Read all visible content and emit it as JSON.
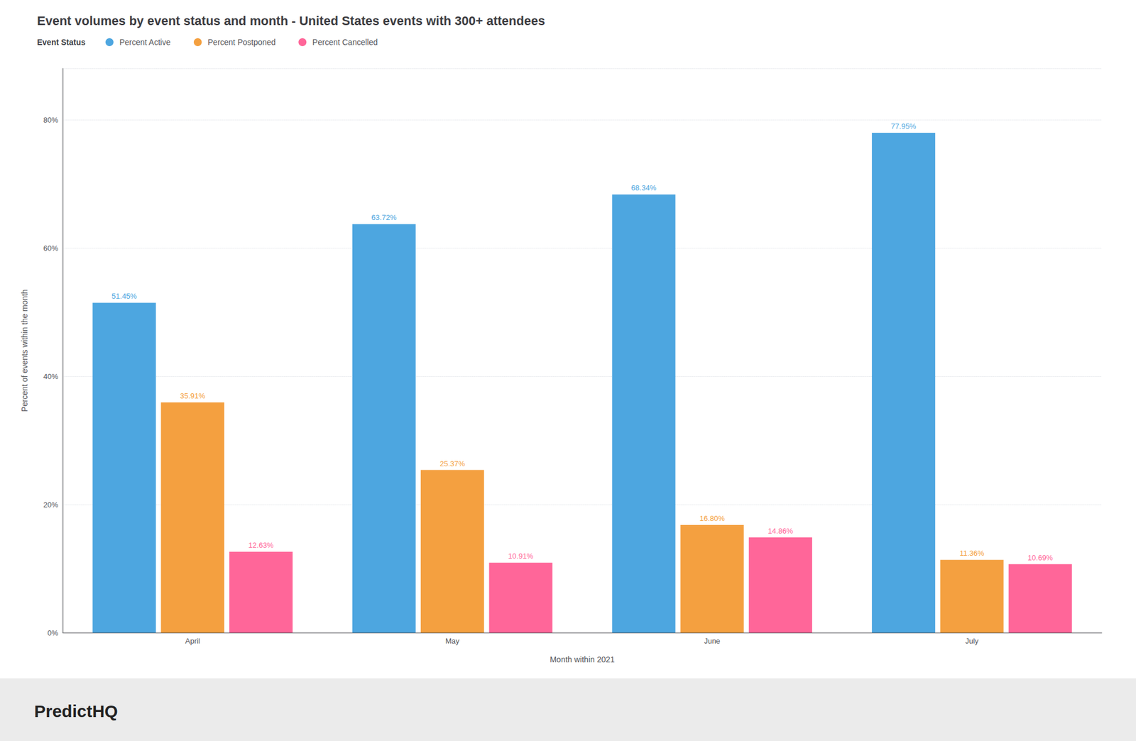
{
  "chart_data": {
    "type": "bar",
    "title": "Event volumes by event status and month - United States events with 300+ attendees",
    "x_label": "Month within 2021",
    "y_label": "Percent of events within the month",
    "legend_title": "Event Status",
    "annotations": [
      "PredictHQ"
    ],
    "categories": [
      "April",
      "May",
      "June",
      "July"
    ],
    "series": [
      {
        "name": "Percent Active",
        "color": "#4DA6E0",
        "values": [
          51.45,
          63.72,
          68.34,
          77.95
        ],
        "value_labels": [
          "51.45%",
          "63.72%",
          "68.34%",
          "77.95%"
        ]
      },
      {
        "name": "Percent Postponed",
        "color": "#F4A040",
        "values": [
          35.91,
          25.37,
          16.8,
          11.36
        ],
        "value_labels": [
          "35.91%",
          "25.37%",
          "16.80%",
          "11.36%"
        ]
      },
      {
        "name": "Percent Cancelled",
        "color": "#FF6699",
        "values": [
          12.63,
          10.91,
          14.86,
          10.69
        ],
        "value_labels": [
          "12.63%",
          "10.91%",
          "14.86%",
          "10.69%"
        ]
      }
    ],
    "ylim": [
      0,
      88
    ],
    "yticks": [
      {
        "value": 0,
        "label": "0%"
      },
      {
        "value": 20,
        "label": "20%"
      },
      {
        "value": 40,
        "label": "40%"
      },
      {
        "value": 60,
        "label": "60%"
      },
      {
        "value": 80,
        "label": "80%"
      }
    ],
    "grid": true,
    "legend": "upper left",
    "data_labels": true
  }
}
